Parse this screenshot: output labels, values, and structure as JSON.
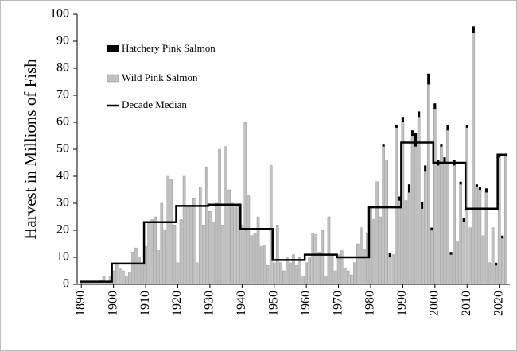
{
  "chart_data": {
    "type": "bar",
    "ylabel": "Harvest in Millions of Fish",
    "x": [
      1890,
      1891,
      1892,
      1893,
      1894,
      1895,
      1896,
      1897,
      1898,
      1899,
      1900,
      1901,
      1902,
      1903,
      1904,
      1905,
      1906,
      1907,
      1908,
      1909,
      1910,
      1911,
      1912,
      1913,
      1914,
      1915,
      1916,
      1917,
      1918,
      1919,
      1920,
      1921,
      1922,
      1923,
      1924,
      1925,
      1926,
      1927,
      1928,
      1929,
      1930,
      1931,
      1932,
      1933,
      1934,
      1935,
      1936,
      1937,
      1938,
      1939,
      1940,
      1941,
      1942,
      1943,
      1944,
      1945,
      1946,
      1947,
      1948,
      1949,
      1950,
      1951,
      1952,
      1953,
      1954,
      1955,
      1956,
      1957,
      1958,
      1959,
      1960,
      1961,
      1962,
      1963,
      1964,
      1965,
      1966,
      1967,
      1968,
      1969,
      1970,
      1971,
      1972,
      1973,
      1974,
      1975,
      1976,
      1977,
      1978,
      1979,
      1980,
      1981,
      1982,
      1983,
      1984,
      1985,
      1986,
      1987,
      1988,
      1989,
      1990,
      1991,
      1992,
      1993,
      1994,
      1995,
      1996,
      1997,
      1998,
      1999,
      2000,
      2001,
      2002,
      2003,
      2004,
      2005,
      2006,
      2007,
      2008,
      2009,
      2010,
      2011,
      2012,
      2013,
      2014,
      2015,
      2016,
      2017,
      2018,
      2019,
      2020,
      2021,
      2022
    ],
    "series": [
      {
        "name": "Wild Pink Salmon",
        "color": "#c0c0c0",
        "values": [
          0.5,
          1,
          0.5,
          1,
          1,
          1,
          1.5,
          3,
          1,
          3,
          5,
          8,
          6,
          5,
          3,
          4.5,
          12,
          13.5,
          10,
          8,
          14,
          23,
          24,
          25,
          12.5,
          30,
          20,
          40,
          39,
          22,
          8,
          24,
          40,
          29,
          29,
          32,
          8,
          36,
          22,
          43.5,
          27,
          23,
          30,
          50,
          22,
          51,
          35,
          30,
          29,
          29,
          22,
          60,
          33,
          18,
          19,
          25,
          14,
          14.5,
          7,
          44,
          8,
          22,
          8,
          5,
          10,
          8,
          11,
          7,
          10,
          3,
          8,
          10,
          19,
          18.5,
          12,
          20,
          3,
          25,
          11,
          5,
          11,
          12.5,
          6,
          5,
          3.5,
          8,
          15,
          21,
          13,
          19,
          28,
          24,
          38,
          25,
          51,
          46,
          10,
          11,
          58,
          31,
          60,
          31,
          34,
          55,
          51,
          62,
          28,
          42,
          74,
          20,
          65,
          44,
          51,
          45,
          57,
          11,
          44,
          16,
          37,
          23,
          58,
          21,
          93,
          36,
          35,
          18,
          34,
          8,
          21,
          7,
          47,
          17,
          48
        ]
      },
      {
        "name": "Hatchery Pink Salmon",
        "color": "#000000",
        "values": [
          0,
          0,
          0,
          0,
          0,
          0,
          0,
          0,
          0,
          0,
          0,
          0,
          0,
          0,
          0,
          0,
          0,
          0,
          0,
          0,
          0,
          0,
          0,
          0,
          0,
          0,
          0,
          0,
          0,
          0,
          0,
          0,
          0,
          0,
          0,
          0,
          0,
          0,
          0,
          0,
          0,
          0,
          0,
          0,
          0,
          0,
          0,
          0,
          0,
          0,
          0,
          0,
          0,
          0,
          0,
          0,
          0,
          0,
          0,
          0,
          0,
          0,
          0,
          0,
          0,
          0,
          0,
          0,
          0,
          0,
          0,
          0,
          0,
          0,
          0,
          0,
          0,
          0,
          0,
          0,
          0,
          0,
          0,
          0,
          0,
          0,
          0,
          0,
          0,
          0,
          0,
          0,
          0,
          0,
          1,
          0,
          1.5,
          0,
          1,
          1.5,
          2,
          0,
          3,
          2,
          5,
          2,
          2.5,
          2,
          4,
          1,
          2,
          2,
          1,
          2,
          2,
          1,
          2,
          0,
          1,
          1.5,
          1,
          0,
          2.5,
          1,
          1,
          0,
          1.5,
          0,
          0,
          1,
          1,
          1,
          0
        ]
      }
    ],
    "median": {
      "name": "Decade Median",
      "color": "#000000",
      "x": [
        1890,
        1900,
        1910,
        1920,
        1930,
        1940,
        1950,
        1960,
        1970,
        1980,
        1990,
        2000,
        2010,
        2020
      ],
      "values": [
        1,
        7.7,
        23,
        29,
        29.5,
        20.5,
        9,
        11,
        10,
        28.5,
        52.5,
        45,
        28,
        48
      ]
    },
    "xlim": [
      1888.7,
      2023.3
    ],
    "xticks": [
      1890,
      1900,
      1910,
      1920,
      1930,
      1940,
      1950,
      1960,
      1970,
      1980,
      1990,
      2000,
      2010,
      2020
    ],
    "ylim": [
      0,
      100
    ],
    "yticks": [
      0,
      10,
      20,
      30,
      40,
      50,
      60,
      70,
      80,
      90,
      100
    ]
  }
}
